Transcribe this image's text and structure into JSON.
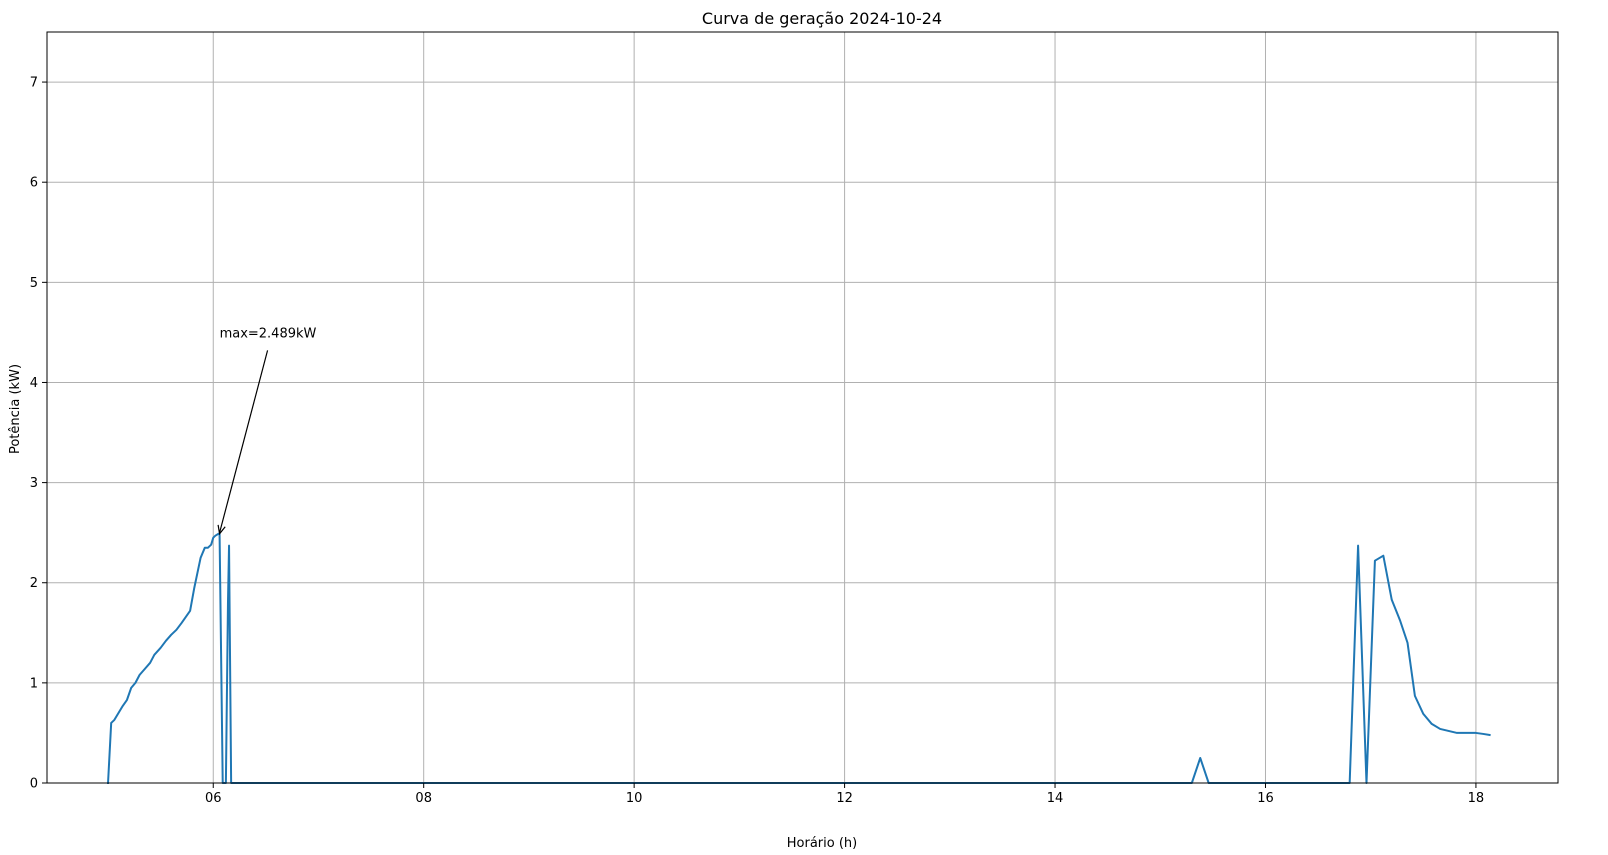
{
  "chart_data": {
    "type": "line",
    "title": "Curva de geração 2024-10-24",
    "xlabel": "Horário (h)",
    "ylabel": "Potência (kW)",
    "xlim": [
      4.42,
      18.78
    ],
    "ylim": [
      0,
      7.5
    ],
    "xticks": [
      6,
      8,
      10,
      12,
      14,
      16,
      18
    ],
    "xtick_labels": [
      "06",
      "08",
      "10",
      "12",
      "14",
      "16",
      "18"
    ],
    "yticks": [
      0,
      1,
      2,
      3,
      4,
      5,
      6,
      7
    ],
    "ytick_labels": [
      "0",
      "1",
      "2",
      "3",
      "4",
      "5",
      "6",
      "7"
    ],
    "grid": true,
    "color": "#1f77b4",
    "annotation": {
      "text": "max=2.489kW",
      "xy": [
        6.06,
        2.489
      ],
      "text_xy": [
        6.06,
        4.45
      ]
    },
    "series": [
      {
        "x": [
          5.0,
          5.03,
          5.06,
          5.1,
          5.14,
          5.18,
          5.22,
          5.26,
          5.3,
          5.35,
          5.4,
          5.44,
          5.5,
          5.55,
          5.6,
          5.65,
          5.7,
          5.74,
          5.78,
          5.82,
          5.84,
          5.86,
          5.88,
          5.92,
          5.95,
          5.98,
          6.0,
          6.02,
          6.05,
          6.06,
          6.09,
          6.12,
          6.14,
          6.15,
          6.17,
          7.0,
          10.0,
          14.0,
          15.3,
          15.38,
          15.46,
          16.0,
          16.8,
          16.88,
          16.96,
          17.04,
          17.12,
          17.2,
          17.28,
          17.35,
          17.42,
          17.5,
          17.58,
          17.66,
          17.74,
          17.82,
          17.9,
          18.0,
          18.07,
          18.13
        ],
        "y": [
          0,
          0.6,
          0.63,
          0.7,
          0.77,
          0.83,
          0.95,
          1.0,
          1.08,
          1.14,
          1.2,
          1.28,
          1.35,
          1.42,
          1.48,
          1.53,
          1.6,
          1.66,
          1.72,
          1.95,
          2.05,
          2.15,
          2.25,
          2.35,
          2.35,
          2.38,
          2.45,
          2.47,
          2.489,
          2.489,
          0,
          0,
          1.8,
          2.37,
          0,
          0,
          0,
          0,
          0,
          0.25,
          0,
          0,
          0,
          2.37,
          0,
          2.22,
          2.27,
          1.83,
          1.62,
          1.4,
          0.87,
          0.69,
          0.59,
          0.54,
          0.52,
          0.5,
          0.5,
          0.5,
          0.49,
          0.48
        ]
      }
    ]
  }
}
